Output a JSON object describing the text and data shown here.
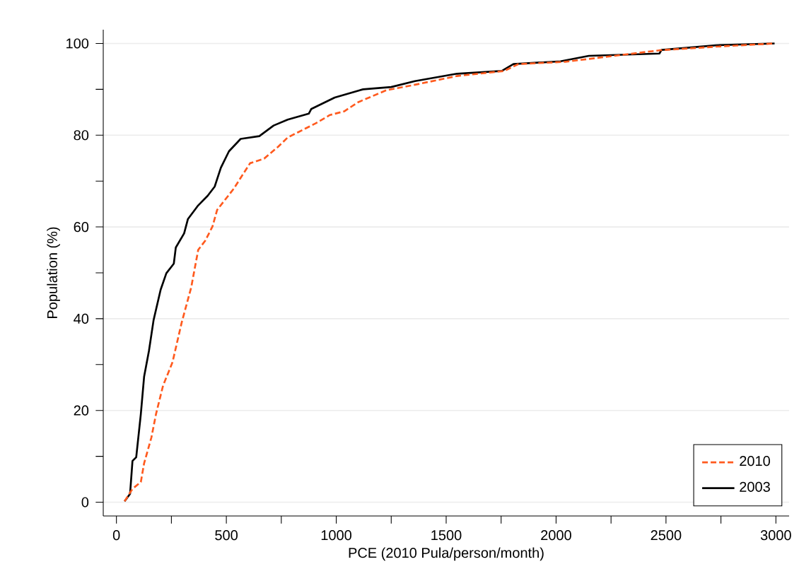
{
  "chart_data": {
    "type": "line",
    "xlabel": "PCE (2010 Pula/person/month)",
    "ylabel": "Population (%)",
    "xlim": [
      -60,
      3060
    ],
    "ylim": [
      -3,
      103
    ],
    "xticks": [
      0,
      {
        "value": 250,
        "label": null
      },
      500,
      {
        "value": 750,
        "label": null
      },
      1000,
      {
        "value": 1250,
        "label": null
      },
      1500,
      {
        "value": 1750,
        "label": null
      },
      2000,
      {
        "value": 2250,
        "label": null
      },
      2500,
      {
        "value": 2750,
        "label": null
      },
      3000
    ],
    "yticks": [
      0,
      {
        "value": 10,
        "label": null
      },
      20,
      {
        "value": 30,
        "label": null
      },
      40,
      {
        "value": 50,
        "label": null
      },
      60,
      {
        "value": 70,
        "label": null
      },
      80,
      {
        "value": 90,
        "label": null
      },
      100
    ],
    "grid": "y",
    "legend": "bottom right",
    "series": [
      {
        "name": "2010",
        "color": "#ff5a1e",
        "line_style": "dashed",
        "x": [
          37,
          73,
          111,
          126,
          159,
          180,
          212,
          255,
          297,
          340,
          372,
          404,
          437,
          458,
          533,
          608,
          672,
          736,
          779,
          907,
          971,
          1036,
          1100,
          1228,
          1358,
          1549,
          1764,
          1828,
          2042,
          2470,
          2727,
          2994
        ],
        "values": [
          0.2,
          2.9,
          4.4,
          8.5,
          14.1,
          19.2,
          25.4,
          30.5,
          39.2,
          46.8,
          55,
          57,
          60.1,
          63.7,
          68.3,
          73.9,
          74.9,
          77.5,
          79.5,
          82.6,
          84.4,
          85.2,
          87.2,
          89.8,
          91,
          92.9,
          94,
          95.5,
          96,
          98.5,
          99.3,
          100
        ]
      },
      {
        "name": "2003",
        "color": "#000000",
        "line_style": "solid",
        "x": [
          37,
          62,
          73,
          90,
          111,
          126,
          148,
          169,
          201,
          227,
          261,
          270,
          308,
          325,
          372,
          415,
          447,
          475,
          512,
          565,
          650,
          715,
          779,
          875,
          886,
          993,
          1122,
          1250,
          1358,
          1549,
          1753,
          1806,
          2020,
          2149,
          2470,
          2480,
          2727,
          2994
        ],
        "values": [
          0.2,
          1.8,
          9,
          9.8,
          19.2,
          27.4,
          33,
          39.7,
          46.3,
          49.9,
          52,
          55.5,
          58.6,
          61.7,
          64.7,
          66.8,
          68.8,
          72.9,
          76.5,
          79.2,
          79.8,
          82.1,
          83.4,
          84.7,
          85.7,
          88.2,
          90,
          90.5,
          91.8,
          93.4,
          94,
          95.5,
          96.1,
          97.3,
          97.8,
          98.6,
          99.6,
          100
        ]
      }
    ]
  }
}
